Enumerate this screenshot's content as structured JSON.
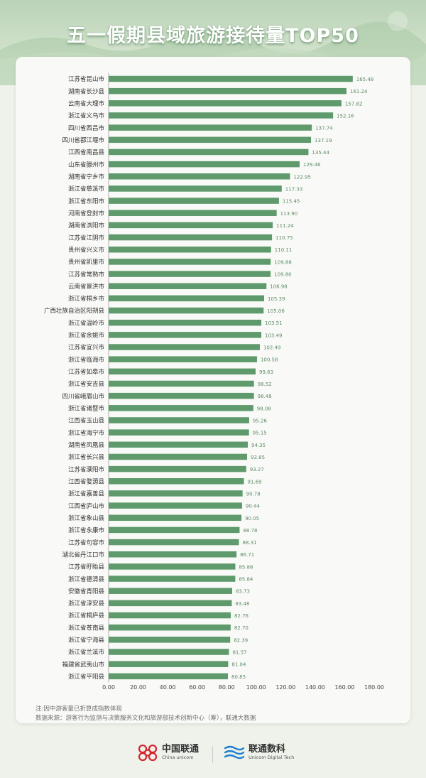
{
  "title": "五一假期县域旅游接待量TOP50",
  "chart_data": {
    "type": "bar",
    "orientation": "horizontal",
    "title": "五一假期县域旅游接待量TOP50",
    "categories": [
      "江苏省昆山市",
      "湖南省长沙县",
      "云南省大理市",
      "浙江省义乌市",
      "四川省西昌市",
      "四川省都江堰市",
      "江西省南昌县",
      "山东省滕州市",
      "湖南省宁乡市",
      "浙江省慈溪市",
      "浙江省东阳市",
      "河南省登封市",
      "湖南省浏阳市",
      "江苏省江阴市",
      "贵州省兴义市",
      "贵州省凯里市",
      "江苏省常熟市",
      "云南省景洪市",
      "浙江省桐乡市",
      "广西壮族自治区阳朔县",
      "浙江省温岭市",
      "浙江省余姚市",
      "江苏省宜兴市",
      "浙江省临海市",
      "江苏省如皋市",
      "浙江省安吉县",
      "四川省峨眉山市",
      "浙江省诸暨市",
      "江西省玉山县",
      "浙江省海宁市",
      "湖南省凤凰县",
      "浙江省长兴县",
      "江苏省溧阳市",
      "江西省婺源县",
      "浙江省嘉善县",
      "江西省庐山市",
      "浙江省象山县",
      "浙江省永康市",
      "江苏省句容市",
      "湖北省丹江口市",
      "江苏省盱眙县",
      "浙江省德清县",
      "安徽省青阳县",
      "浙江省淳安县",
      "浙江省桐庐县",
      "浙江省苍南县",
      "浙江省宁海县",
      "浙江省兰溪市",
      "福建省武夷山市",
      "浙江省平阳县"
    ],
    "values": [
      165.48,
      161.24,
      157.82,
      152.16,
      137.74,
      137.19,
      135.44,
      129.46,
      122.95,
      117.33,
      115.45,
      113.9,
      111.24,
      110.75,
      110.11,
      109.88,
      109.8,
      106.98,
      105.39,
      105.06,
      103.51,
      103.49,
      102.49,
      100.58,
      99.63,
      98.52,
      98.48,
      98.08,
      95.26,
      95.15,
      94.35,
      93.85,
      93.27,
      91.69,
      90.78,
      90.44,
      90.05,
      88.78,
      88.31,
      86.71,
      85.88,
      85.84,
      83.73,
      83.48,
      82.76,
      82.7,
      82.39,
      81.57,
      81.04,
      80.85
    ],
    "xlim": [
      0,
      180
    ],
    "xticks": [
      0,
      20,
      40,
      60,
      80,
      100,
      120,
      140,
      160,
      180
    ],
    "xtick_labels": [
      "0.00",
      "20.00",
      "40.00",
      "60.00",
      "80.00",
      "100.00",
      "120.00",
      "140.00",
      "160.00",
      "180.00"
    ],
    "grid": false,
    "bar_color": "#5e9a6c"
  },
  "notes": {
    "line1": "注:因中游客量已折算成指数体现",
    "line2": "数据来源：游客行为监测与决策服务文化和旅游部技术创新中心（筹），联通大数据"
  },
  "footer": {
    "logo1_name": "中国联通",
    "logo1_sub": "China unicom",
    "logo2_name": "联通数科",
    "logo2_sub": "Unicom Digital Tech"
  },
  "colors": {
    "bar": "#5e9a6c",
    "title_shadow": "#6a9a70",
    "unicom_red": "#d6262e",
    "digital_blue": "#1f7fd0"
  }
}
